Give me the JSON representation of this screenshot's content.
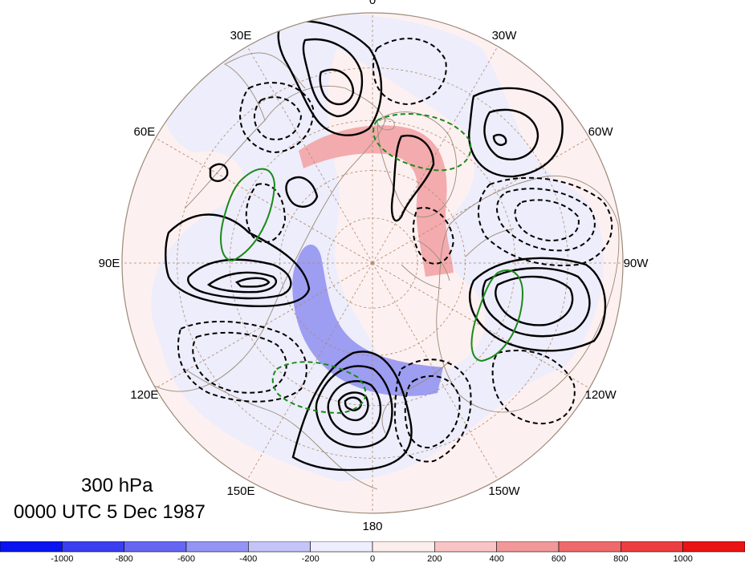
{
  "map": {
    "projection": "north-polar-stereographic",
    "lon_labels": [
      {
        "lon": 0,
        "text": "0"
      },
      {
        "lon": 30,
        "text": "30W"
      },
      {
        "lon": 60,
        "text": "60W"
      },
      {
        "lon": 90,
        "text": "90W"
      },
      {
        "lon": 120,
        "text": "120W"
      },
      {
        "lon": 150,
        "text": "150W"
      },
      {
        "lon": 180,
        "text": "180"
      },
      {
        "lon": 210,
        "text": "150E"
      },
      {
        "lon": 240,
        "text": "120E"
      },
      {
        "lon": 270,
        "text": "90E"
      },
      {
        "lon": 300,
        "text": "60E"
      },
      {
        "lon": 330,
        "text": "30E"
      }
    ],
    "level": "300 hPa",
    "time": "0000 UTC 5 Dec 1987"
  },
  "colorbar": {
    "ticks": [
      "-1000",
      "-800",
      "-600",
      "-400",
      "-200",
      "0",
      "200",
      "400",
      "600",
      "800",
      "1000"
    ],
    "colors": [
      "#0a14f0",
      "#3b3ff0",
      "#6666f2",
      "#9494f4",
      "#c4c4f8",
      "#eeeeff",
      "#fdeeee",
      "#f8c4c6",
      "#f29898",
      "#ef6a6c",
      "#ec3e40",
      "#ea1414"
    ]
  },
  "colors": {
    "land": "#9b8a78",
    "grid": "#b08a6a",
    "positive_contour": "#000000",
    "negative_contour": "#000000",
    "green_contour": "#1a8a1a",
    "pos_band": "#f2a3a6",
    "neg_band": "#8e8ef0"
  }
}
